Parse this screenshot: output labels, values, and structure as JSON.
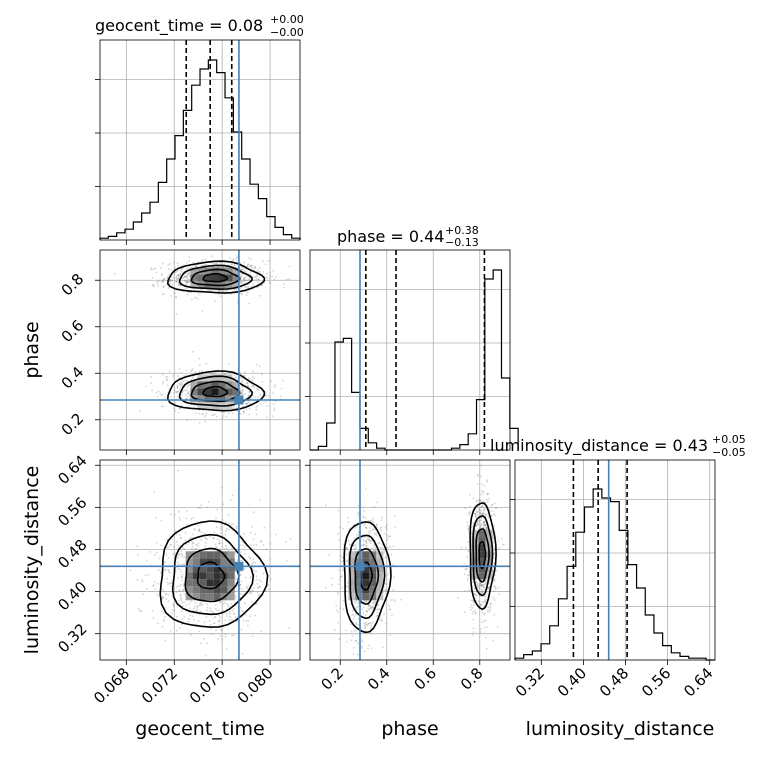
{
  "chart_data": {
    "type": "corner",
    "parameters": [
      {
        "name": "geocent_time",
        "label": "geocent_time",
        "range": [
          0.0658,
          0.0825
        ],
        "ticks": [
          "0.068",
          "0.072",
          "0.076",
          "0.080"
        ],
        "tick_values": [
          0.068,
          0.072,
          0.076,
          0.08
        ],
        "truth": 0.0774,
        "quantiles": [
          0.073,
          0.075,
          0.0768
        ],
        "title": {
          "prefix": "geocent_time = 0.08",
          "plus": "+0.00",
          "minus": "−0.00"
        },
        "hist_edges_start": 0.0658,
        "hist_bin_width": 0.000696,
        "hist_counts": [
          0.01,
          0.02,
          0.04,
          0.06,
          0.1,
          0.15,
          0.21,
          0.32,
          0.45,
          0.58,
          0.72,
          0.86,
          0.95,
          1.0,
          0.93,
          0.79,
          0.6,
          0.45,
          0.31,
          0.23,
          0.13,
          0.07,
          0.03,
          0.01
        ]
      },
      {
        "name": "phase",
        "label": "phase",
        "range": [
          0.07,
          0.93
        ],
        "ticks": [
          "0.2",
          "0.4",
          "0.6",
          "0.8"
        ],
        "tick_values": [
          0.2,
          0.4,
          0.6,
          0.8
        ],
        "truth": 0.285,
        "quantiles": [
          0.31,
          0.44,
          0.82
        ],
        "title": {
          "prefix": "phase = 0.44",
          "plus": "+0.38",
          "minus": "−0.13"
        },
        "hist_edges_start": 0.07,
        "hist_bin_width": 0.0358,
        "hist_counts": [
          0.0,
          0.02,
          0.15,
          0.6,
          0.62,
          0.32,
          0.12,
          0.04,
          0.01,
          0.0,
          0.0,
          0.0,
          0.0,
          0.0,
          0.0,
          0.0,
          0.0,
          0.01,
          0.03,
          0.09,
          0.28,
          0.95,
          1.0,
          0.4,
          0.12
        ]
      },
      {
        "name": "luminosity_distance",
        "label": "luminosity_distance",
        "range": [
          0.27,
          0.65
        ],
        "ticks": [
          "0.32",
          "0.40",
          "0.48",
          "0.56",
          "0.64"
        ],
        "tick_values": [
          0.32,
          0.4,
          0.48,
          0.56,
          0.64
        ],
        "truth": 0.448,
        "quantiles": [
          0.381,
          0.428,
          0.483
        ],
        "title": {
          "prefix": "luminosity_distance = 0.43",
          "plus": "+0.05",
          "minus": "−0.05"
        },
        "hist_edges_start": 0.27,
        "hist_bin_width": 0.0165,
        "hist_counts": [
          0.01,
          0.03,
          0.05,
          0.09,
          0.19,
          0.34,
          0.52,
          0.71,
          0.85,
          0.95,
          0.9,
          0.88,
          0.72,
          0.53,
          0.4,
          0.25,
          0.15,
          0.08,
          0.04,
          0.02,
          0.01,
          0.01,
          0.0
        ]
      }
    ],
    "modes_2d": [
      {
        "x": "geocent_time",
        "y": "phase",
        "blobs": [
          {
            "cx": 0.0754,
            "cy": 0.81,
            "sx": 0.0018,
            "sy": 0.032,
            "w": 1.0
          },
          {
            "cx": 0.0754,
            "cy": 0.32,
            "sx": 0.0018,
            "sy": 0.04,
            "w": 0.9
          }
        ]
      },
      {
        "x": "geocent_time",
        "y": "luminosity_distance",
        "blobs": [
          {
            "cx": 0.075,
            "cy": 0.43,
            "sx": 0.002,
            "sy": 0.048,
            "w": 1.0
          }
        ]
      },
      {
        "x": "phase",
        "y": "luminosity_distance",
        "blobs": [
          {
            "cx": 0.31,
            "cy": 0.43,
            "sx": 0.045,
            "sy": 0.05,
            "w": 0.85
          },
          {
            "cx": 0.81,
            "cy": 0.47,
            "sx": 0.025,
            "sy": 0.048,
            "w": 1.0
          }
        ]
      }
    ]
  }
}
